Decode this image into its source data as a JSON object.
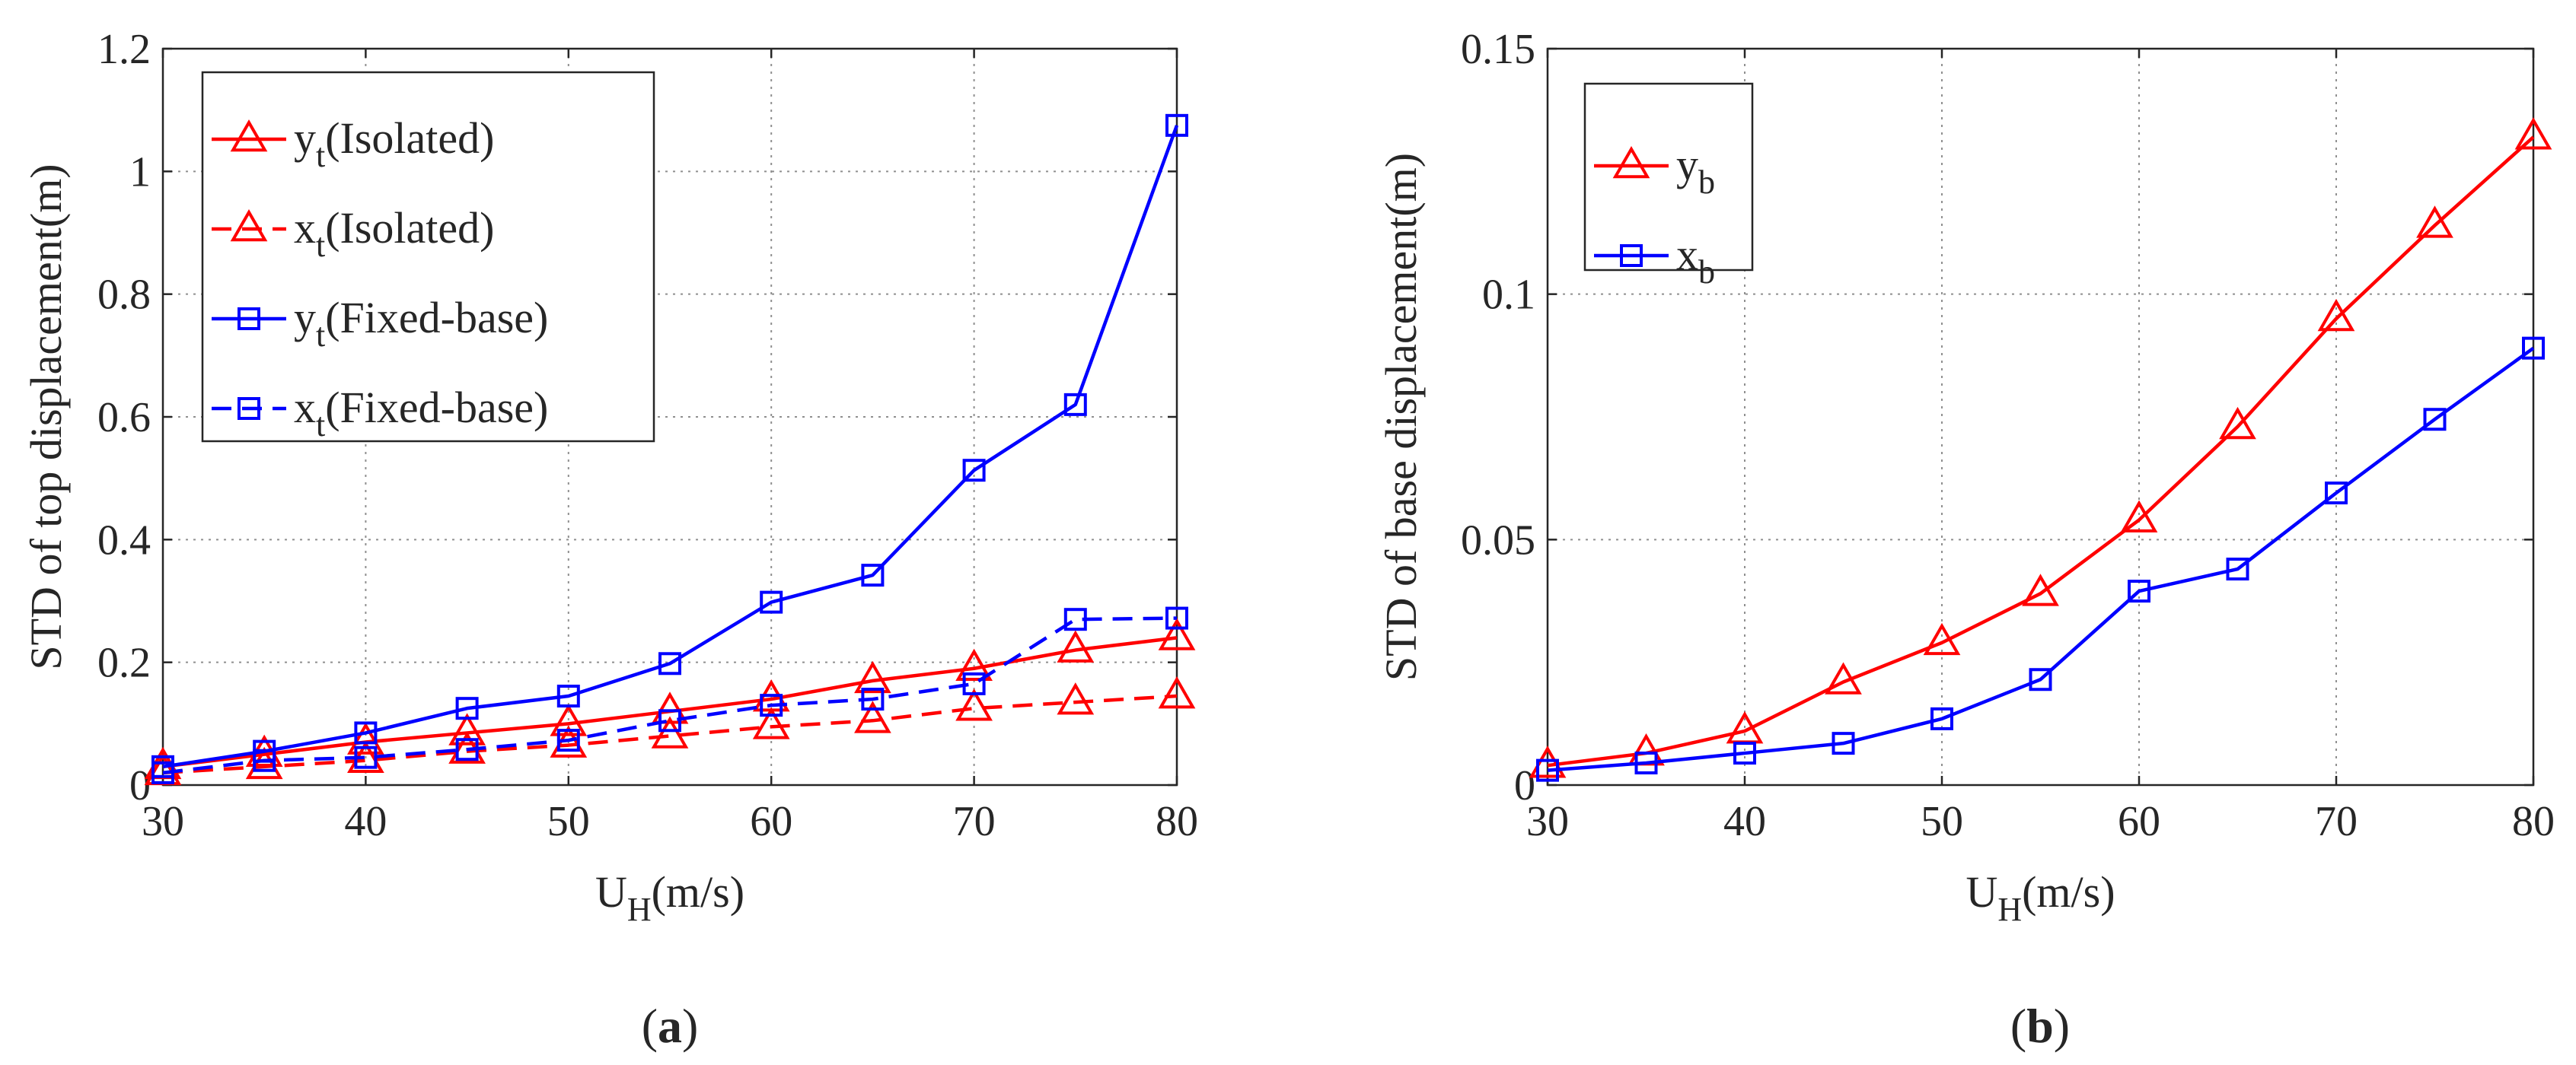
{
  "colors": {
    "red": "#ff0000",
    "blue": "#0000ff",
    "axis": "#262626"
  },
  "chart_data": [
    {
      "type": "line",
      "panel_label": "(a)",
      "title": "",
      "xlabel": {
        "main": "U",
        "sub": "H",
        "rest": "(m/s)"
      },
      "ylabel": "STD of top displacement(m)",
      "x": [
        30,
        35,
        40,
        45,
        50,
        55,
        60,
        65,
        70,
        75,
        80
      ],
      "xlim": [
        30,
        80
      ],
      "ylim": [
        0,
        1.2
      ],
      "xticks": [
        30,
        40,
        50,
        60,
        70,
        80
      ],
      "xtick_labels": [
        "30",
        "40",
        "50",
        "60",
        "70",
        "80"
      ],
      "yticks": [
        0,
        0.2,
        0.4,
        0.6,
        0.8,
        1.0,
        1.2
      ],
      "ytick_labels": [
        "0",
        "0.2",
        "0.4",
        "0.6",
        "0.8",
        "1",
        "1.2"
      ],
      "grid": true,
      "legend_position": "top-left",
      "series": [
        {
          "name": "yt(Isolated)",
          "label_main": "y",
          "label_sub": "t",
          "label_rest": "(Isolated)",
          "color": "#ff0000",
          "dash": "solid",
          "marker": "triangle",
          "values": [
            0.03,
            0.05,
            0.07,
            0.085,
            0.1,
            0.12,
            0.14,
            0.17,
            0.19,
            0.22,
            0.24
          ]
        },
        {
          "name": "xt(Isolated)",
          "label_main": "x",
          "label_sub": "t",
          "label_rest": "(Isolated)",
          "color": "#ff0000",
          "dash": "dashed",
          "marker": "triangle",
          "values": [
            0.02,
            0.03,
            0.04,
            0.055,
            0.065,
            0.08,
            0.095,
            0.105,
            0.125,
            0.135,
            0.145
          ]
        },
        {
          "name": "yt(Fixed-base)",
          "label_main": "y",
          "label_sub": "t",
          "label_rest": "(Fixed-base)",
          "color": "#0000ff",
          "dash": "solid",
          "marker": "square",
          "values": [
            0.03,
            0.055,
            0.085,
            0.125,
            0.145,
            0.198,
            0.298,
            0.342,
            0.513,
            0.62,
            1.075
          ]
        },
        {
          "name": "xt(Fixed-base)",
          "label_main": "x",
          "label_sub": "t",
          "label_rest": "(Fixed-base)",
          "color": "#0000ff",
          "dash": "dashed",
          "marker": "square",
          "values": [
            0.02,
            0.04,
            0.045,
            0.058,
            0.073,
            0.105,
            0.13,
            0.14,
            0.165,
            0.27,
            0.272
          ]
        }
      ]
    },
    {
      "type": "line",
      "panel_label": "(b)",
      "title": "",
      "xlabel": {
        "main": "U",
        "sub": "H",
        "rest": "(m/s)"
      },
      "ylabel": "STD of base displacement(m)",
      "x": [
        30,
        35,
        40,
        45,
        50,
        55,
        60,
        65,
        70,
        75,
        80
      ],
      "xlim": [
        30,
        80
      ],
      "ylim": [
        0,
        0.15
      ],
      "xticks": [
        30,
        40,
        50,
        60,
        70,
        80
      ],
      "xtick_labels": [
        "30",
        "40",
        "50",
        "60",
        "70",
        "80"
      ],
      "yticks": [
        0,
        0.05,
        0.1,
        0.15
      ],
      "ytick_labels": [
        "0",
        "0.05",
        "0.1",
        "0.15"
      ],
      "grid": true,
      "legend_position": "top-left",
      "series": [
        {
          "name": "yb",
          "label_main": "y",
          "label_sub": "b",
          "label_rest": "",
          "color": "#ff0000",
          "dash": "solid",
          "marker": "triangle",
          "values": [
            0.004,
            0.0065,
            0.011,
            0.021,
            0.029,
            0.039,
            0.054,
            0.073,
            0.095,
            0.114,
            0.132
          ]
        },
        {
          "name": "xb",
          "label_main": "x",
          "label_sub": "b",
          "label_rest": "",
          "color": "#0000ff",
          "dash": "solid",
          "marker": "square",
          "values": [
            0.003,
            0.0045,
            0.0065,
            0.0085,
            0.0135,
            0.0215,
            0.0395,
            0.044,
            0.0595,
            0.0745,
            0.089
          ]
        }
      ]
    }
  ]
}
